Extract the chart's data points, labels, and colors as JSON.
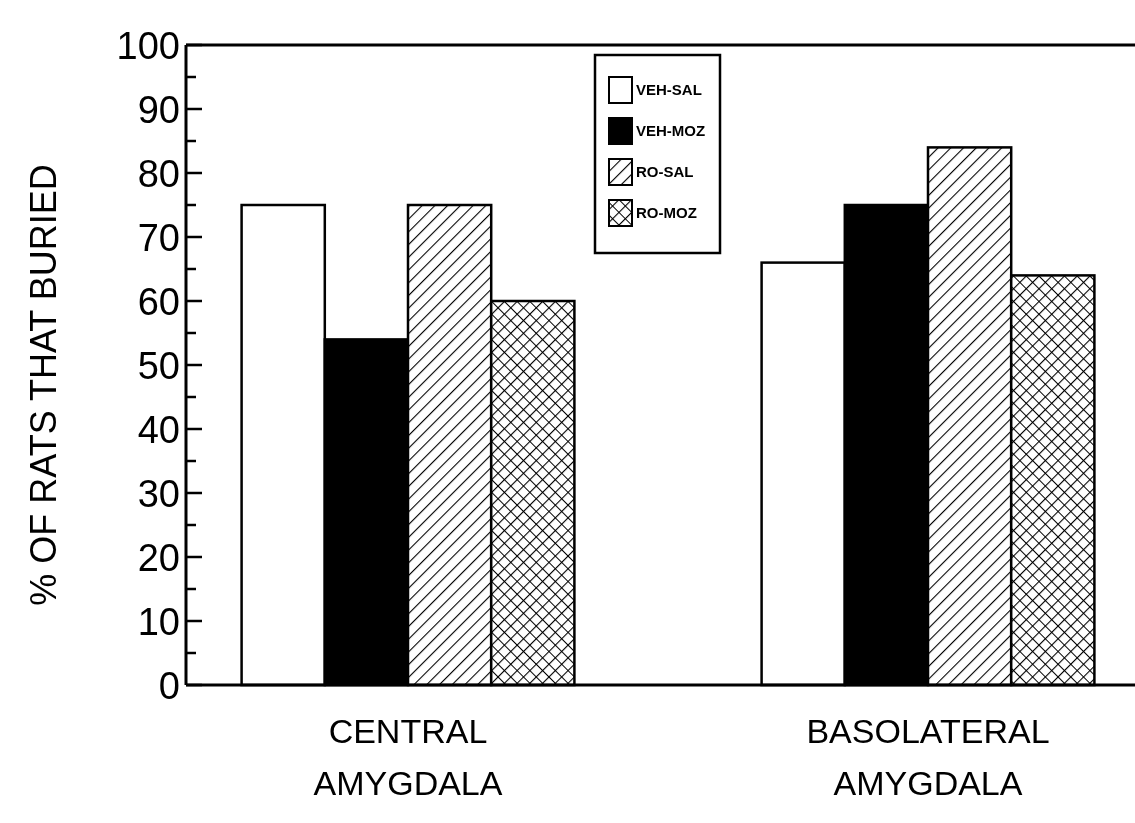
{
  "chart_data": {
    "type": "bar",
    "ylabel": "% OF RATS THAT BURIED",
    "categories": [
      "CENTRAL\nAMYGDALA",
      "BASOLATERAL\nAMYGDALA"
    ],
    "series": [
      {
        "name": "VEH-SAL",
        "color": "#ffffff",
        "values": [
          75,
          66
        ]
      },
      {
        "name": "VEH-MOZ",
        "color": "#000000",
        "values": [
          54,
          75
        ]
      },
      {
        "name": "RO-SAL",
        "color": "#000000",
        "values": [
          75,
          84
        ]
      },
      {
        "name": "RO-MOZ",
        "color": "#000000",
        "values": [
          60,
          64
        ]
      }
    ],
    "ylim": [
      0,
      100
    ],
    "yticks": [
      0,
      {
        "value": 5,
        "label": null
      },
      10,
      {
        "value": 15,
        "label": null
      },
      20,
      {
        "value": 25,
        "label": null
      },
      30,
      {
        "value": 35,
        "label": null
      },
      40,
      {
        "value": 45,
        "label": null
      },
      50,
      {
        "value": 55,
        "label": null
      },
      60,
      {
        "value": 65,
        "label": null
      },
      70,
      {
        "value": 75,
        "label": null
      },
      80,
      {
        "value": 85,
        "label": null
      },
      90,
      {
        "value": 95,
        "label": null
      },
      100
    ],
    "grid": false,
    "legend": "top"
  }
}
